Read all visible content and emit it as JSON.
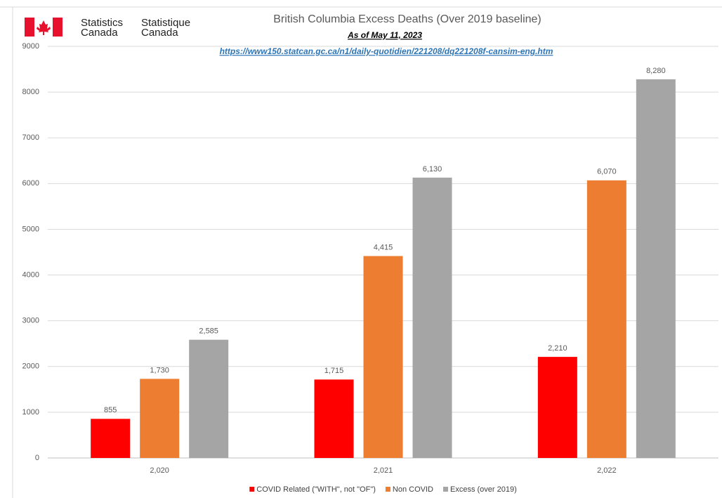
{
  "header": {
    "logo_en": [
      "Statistics",
      "Canada"
    ],
    "logo_fr": [
      "Statistique",
      "Canada"
    ]
  },
  "chart_data": {
    "type": "bar",
    "title": "British Columbia Excess Deaths (Over 2019 baseline)",
    "subtitle": "As of May 11, 2023",
    "source_url": "https://www150.statcan.gc.ca/n1/daily-quotidien/221208/dq221208f-cansim-eng.htm",
    "categories": [
      "2,020",
      "2,021",
      "2,022"
    ],
    "series": [
      {
        "name": "COVID Related (\"WITH\", not \"OF\")",
        "color": "#ff0000",
        "values": [
          855,
          1715,
          2210
        ],
        "value_labels": [
          "855",
          "1,715",
          "2,210"
        ]
      },
      {
        "name": "Non COVID",
        "color": "#ed7d31",
        "values": [
          1730,
          4415,
          6070
        ],
        "value_labels": [
          "1,730",
          "4,415",
          "6,070"
        ]
      },
      {
        "name": "Excess (over 2019)",
        "color": "#a5a5a5",
        "values": [
          2585,
          6130,
          8280
        ],
        "value_labels": [
          "2,585",
          "6,130",
          "8,280"
        ]
      }
    ],
    "ylim": [
      0,
      9000
    ],
    "yticks": [
      0,
      1000,
      2000,
      3000,
      4000,
      5000,
      6000,
      7000,
      8000,
      9000
    ],
    "grid": true,
    "legend": "bottom"
  }
}
